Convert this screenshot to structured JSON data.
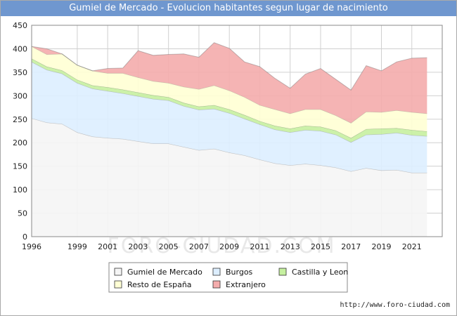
{
  "title": "Gumiel de Mercado - Evolucion habitantes segun lugar de nacimiento",
  "credit": "http://www.foro-ciudad.com",
  "watermark": "FORO-CIUDAD.COM",
  "chart_data": {
    "type": "area",
    "stacked": true,
    "x": [
      1996,
      1997,
      1998,
      1999,
      2000,
      2001,
      2002,
      2003,
      2004,
      2005,
      2006,
      2007,
      2008,
      2009,
      2010,
      2011,
      2012,
      2013,
      2014,
      2015,
      2016,
      2017,
      2018,
      2019,
      2020,
      2021,
      2022
    ],
    "xticks": [
      1996,
      1999,
      2001,
      2003,
      2005,
      2007,
      2009,
      2011,
      2013,
      2015,
      2017,
      2019,
      2021
    ],
    "yticks": [
      0,
      50,
      100,
      150,
      200,
      250,
      300,
      350,
      400,
      450
    ],
    "xlim": [
      1996,
      2023
    ],
    "ylim": [
      0,
      450
    ],
    "grid": true,
    "legend_position": "bottom",
    "series": [
      {
        "name": "Gumiel de Mercado",
        "color": "#f5f5f5",
        "values": [
          252,
          243,
          240,
          222,
          213,
          210,
          208,
          203,
          198,
          198,
          191,
          184,
          187,
          179,
          173,
          164,
          156,
          152,
          155,
          152,
          147,
          139,
          146,
          141,
          142,
          136,
          136
        ]
      },
      {
        "name": "Burgos",
        "color": "#ddeeff",
        "values": [
          120,
          112,
          107,
          105,
          102,
          100,
          97,
          96,
          95,
          92,
          87,
          86,
          85,
          84,
          78,
          75,
          72,
          70,
          72,
          73,
          70,
          62,
          71,
          77,
          79,
          80,
          78
        ]
      },
      {
        "name": "Castilla y Leon",
        "color": "#c6f0a0",
        "values": [
          7,
          7,
          7,
          7,
          7,
          8,
          8,
          8,
          8,
          7,
          7,
          7,
          8,
          8,
          8,
          7,
          8,
          8,
          9,
          9,
          9,
          9,
          12,
          12,
          10,
          11,
          10
        ]
      },
      {
        "name": "Resto de España",
        "color": "#ffffd4",
        "values": [
          26,
          26,
          35,
          31,
          31,
          30,
          35,
          32,
          30,
          30,
          34,
          37,
          42,
          40,
          38,
          34,
          35,
          32,
          35,
          37,
          32,
          32,
          37,
          35,
          38,
          38,
          38
        ]
      },
      {
        "name": "Extranjero",
        "color": "#f4acac",
        "values": [
          0,
          12,
          0,
          0,
          0,
          10,
          11,
          57,
          55,
          61,
          70,
          68,
          91,
          90,
          75,
          82,
          66,
          54,
          75,
          87,
          77,
          70,
          98,
          88,
          103,
          115,
          119
        ]
      }
    ]
  }
}
